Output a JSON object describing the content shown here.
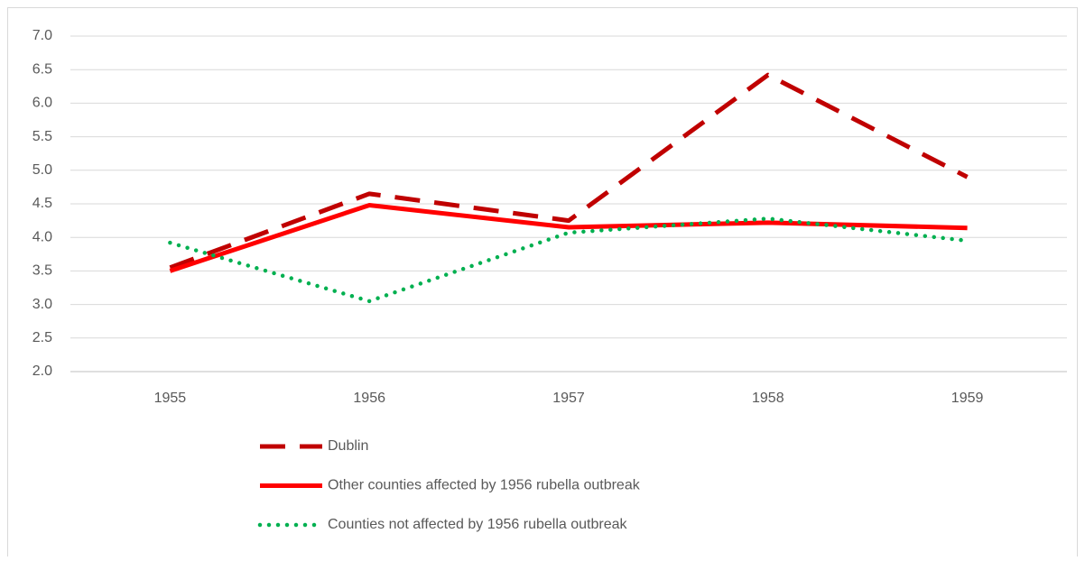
{
  "chart_data": {
    "type": "line",
    "categories": [
      "1955",
      "1956",
      "1957",
      "1958",
      "1959"
    ],
    "series": [
      {
        "name": "Dublin",
        "color": "#c00000",
        "dash": "dashed",
        "values": [
          3.55,
          4.65,
          4.25,
          6.42,
          4.9
        ]
      },
      {
        "name": "Other counties affected by 1956 rubella outbreak",
        "color": "#ff0000",
        "dash": "solid",
        "values": [
          3.5,
          4.48,
          4.15,
          4.22,
          4.14
        ]
      },
      {
        "name": "Counties not affected by 1956 rubella outbreak",
        "color": "#00b050",
        "dash": "dotted",
        "values": [
          3.92,
          3.05,
          4.07,
          4.28,
          3.95
        ]
      }
    ],
    "ylim": [
      2,
      7
    ],
    "yticks": [
      {
        "value": 2,
        "label": "2.0"
      },
      2.5,
      {
        "value": 3,
        "label": "3.0"
      },
      3.5,
      {
        "value": 4,
        "label": "4.0"
      },
      4.5,
      {
        "value": 5,
        "label": "5.0"
      },
      5.5,
      {
        "value": 6,
        "label": "6.0"
      },
      6.5,
      {
        "value": 7,
        "label": "7.0"
      }
    ],
    "grid": true,
    "legend": "bottom"
  }
}
